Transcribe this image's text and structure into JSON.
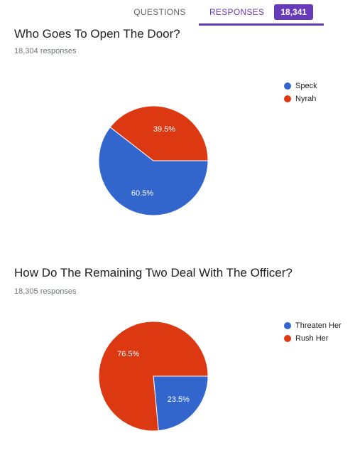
{
  "tabs": {
    "questions_label": "QUESTIONS",
    "responses_label": "RESPONSES",
    "responses_count": "18,341"
  },
  "questions": [
    {
      "title": "Who Goes To Open The Door?",
      "responses": "18,304 responses",
      "chart_data": {
        "type": "pie",
        "slices": [
          {
            "name": "Speck",
            "value": 60.5,
            "label": "60.5%",
            "color": "#3366cc"
          },
          {
            "name": "Nyrah",
            "value": 39.5,
            "label": "39.5%",
            "color": "#dc3912"
          }
        ]
      }
    },
    {
      "title": "How Do The Remaining Two Deal With The Officer?",
      "responses": "18,305 responses",
      "chart_data": {
        "type": "pie",
        "slices": [
          {
            "name": "Threaten Her",
            "value": 23.5,
            "label": "23.5%",
            "color": "#3366cc"
          },
          {
            "name": "Rush Her",
            "value": 76.5,
            "label": "76.5%",
            "color": "#dc3912"
          }
        ]
      }
    }
  ]
}
